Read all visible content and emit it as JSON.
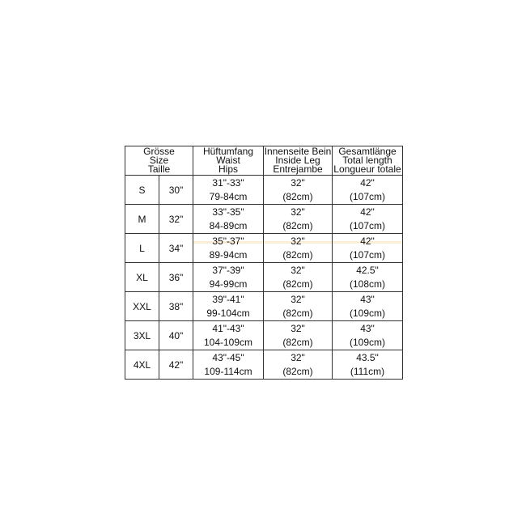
{
  "header": {
    "size": [
      "Grösse",
      "Size",
      "Taille"
    ],
    "hips": [
      "Hüftumfang",
      "Waist",
      "Hips"
    ],
    "inside_leg": [
      "Innenseite Bein",
      "Inside Leg",
      "Entrejambe"
    ],
    "total_length": [
      "Gesamtlänge",
      "Total length",
      "Longueur totale"
    ]
  },
  "rows": [
    {
      "size": "S",
      "inch": "30\"",
      "hips_in": "31\"-33\"",
      "hips_cm": "79-84cm",
      "leg_in": "32\"",
      "leg_cm": "(82cm)",
      "len_in": "42\"",
      "len_cm": "(107cm)"
    },
    {
      "size": "M",
      "inch": "32\"",
      "hips_in": "33\"-35\"",
      "hips_cm": "84-89cm",
      "leg_in": "32\"",
      "leg_cm": "(82cm)",
      "len_in": "42\"",
      "len_cm": "(107cm)"
    },
    {
      "size": "L",
      "inch": "34\"",
      "hips_in": "35\"-37\"",
      "hips_cm": "89-94cm",
      "leg_in": "32\"",
      "leg_cm": "(82cm)",
      "len_in": "42\"",
      "len_cm": "(107cm)"
    },
    {
      "size": "XL",
      "inch": "36\"",
      "hips_in": "37\"-39\"",
      "hips_cm": "94-99cm",
      "leg_in": "32\"",
      "leg_cm": "(82cm)",
      "len_in": "42.5\"",
      "len_cm": "(108cm)"
    },
    {
      "size": "XXL",
      "inch": "38\"",
      "hips_in": "39\"-41\"",
      "hips_cm": "99-104cm",
      "leg_in": "32\"",
      "leg_cm": "(82cm)",
      "len_in": "43\"",
      "len_cm": "(109cm)"
    },
    {
      "size": "3XL",
      "inch": "40\"",
      "hips_in": "41\"-43\"",
      "hips_cm": "104-109cm",
      "leg_in": "32\"",
      "leg_cm": "(82cm)",
      "len_in": "43\"",
      "len_cm": "(109cm)"
    },
    {
      "size": "4XL",
      "inch": "42\"",
      "hips_in": "43\"-45\"",
      "hips_cm": "109-114cm",
      "leg_in": "32\"",
      "leg_cm": "(82cm)",
      "len_in": "43.5\"",
      "len_cm": "(111cm)"
    }
  ]
}
